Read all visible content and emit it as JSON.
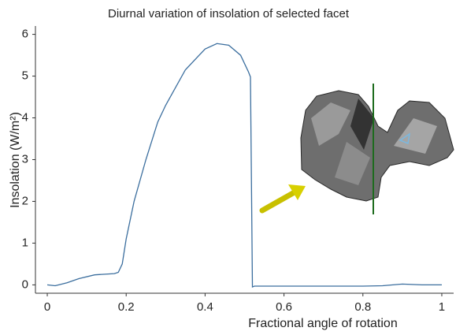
{
  "chart_data": {
    "type": "line",
    "title": "Diurnal variation of insolation of selected facet",
    "x_label": "Fractional angle of rotation",
    "y_label": "Insolation (W/m²)",
    "x": [
      0,
      0.02,
      0.05,
      0.08,
      0.12,
      0.17,
      0.18,
      0.19,
      0.2,
      0.22,
      0.25,
      0.28,
      0.3,
      0.35,
      0.4,
      0.43,
      0.46,
      0.49,
      0.51,
      0.515,
      0.52,
      0.525,
      0.8,
      0.85,
      0.9,
      0.95,
      1.0
    ],
    "values": [
      0,
      -0.02,
      0.05,
      0.15,
      0.24,
      0.27,
      0.3,
      0.5,
      1.1,
      2.0,
      3.0,
      3.9,
      4.3,
      5.15,
      5.65,
      5.78,
      5.74,
      5.5,
      5.1,
      4.98,
      -0.05,
      -0.03,
      -0.03,
      -0.02,
      0.02,
      0,
      0
    ],
    "color": "#3b6e9e",
    "xlim": [
      -0.03,
      1.03
    ],
    "xticks": [
      0,
      0.2,
      0.4,
      0.6,
      0.8,
      1
    ],
    "ylim": [
      -0.2,
      6.2
    ],
    "yticks": [
      0,
      1,
      2,
      3,
      4,
      5,
      6
    ]
  }
}
